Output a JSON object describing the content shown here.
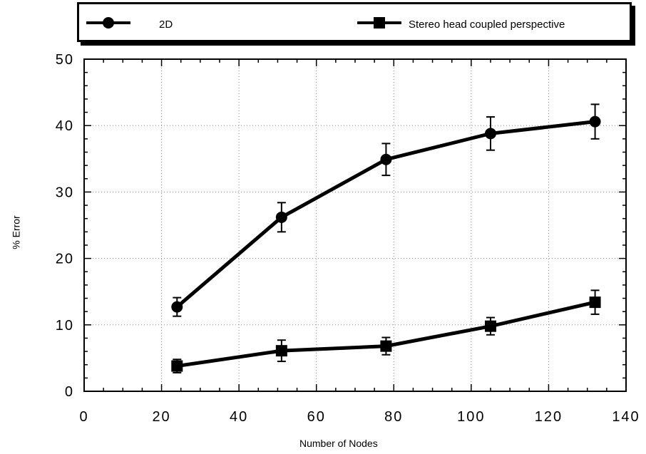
{
  "chart_data": {
    "type": "line",
    "xlabel": "Number of Nodes",
    "ylabel": "% Error",
    "xlim": [
      0,
      140
    ],
    "ylim": [
      0,
      50
    ],
    "x_ticks": [
      0,
      20,
      40,
      60,
      80,
      100,
      120,
      140
    ],
    "y_ticks": [
      0,
      10,
      20,
      30,
      40,
      50
    ],
    "grid": true,
    "legend_position": "top",
    "series": [
      {
        "name": "2D",
        "marker": "circle",
        "color": "#000000",
        "x": [
          24,
          51,
          78,
          105,
          132
        ],
        "y": [
          12.7,
          26.2,
          34.9,
          38.8,
          40.6
        ],
        "error": [
          1.4,
          2.2,
          2.4,
          2.5,
          2.6
        ]
      },
      {
        "name": "Stereo head coupled perspective",
        "marker": "square",
        "color": "#000000",
        "x": [
          24,
          51,
          78,
          105,
          132
        ],
        "y": [
          3.8,
          6.1,
          6.8,
          9.8,
          13.4
        ],
        "error": [
          1.0,
          1.6,
          1.3,
          1.3,
          1.8
        ]
      }
    ]
  }
}
